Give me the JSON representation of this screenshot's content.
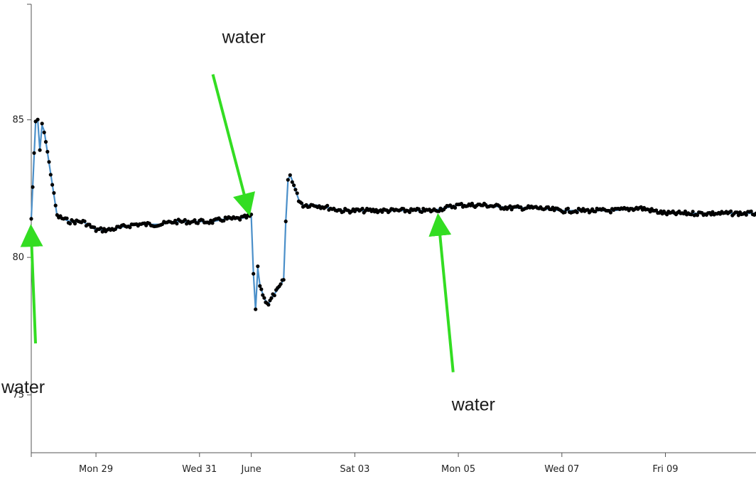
{
  "chart_data": {
    "type": "line",
    "title": "",
    "xlabel": "",
    "ylabel": "",
    "x_axis": {
      "type": "time",
      "range": [
        "2023-05-27T18:00",
        "2023-06-10T18:00"
      ],
      "ticks": [
        {
          "date": "2023-05-29",
          "label": "Mon 29"
        },
        {
          "date": "2023-05-31",
          "label": "Wed 31"
        },
        {
          "date": "2023-06-01",
          "label": "June"
        },
        {
          "date": "2023-06-03",
          "label": "Sat 03"
        },
        {
          "date": "2023-06-05",
          "label": "Mon 05"
        },
        {
          "date": "2023-06-07",
          "label": "Wed 07"
        },
        {
          "date": "2023-06-09",
          "label": "Fri 09"
        }
      ]
    },
    "y_axis": {
      "range": [
        72.9,
        89.2
      ],
      "ticks": [
        75,
        80,
        85
      ]
    },
    "grid": false,
    "legend": "none",
    "colors": {
      "line": "#4a8fc9",
      "points": "#000000",
      "arrows": "#33dd22",
      "axis": "#555555"
    },
    "series": [
      {
        "points": [
          [
            "2023-05-27T18:00",
            81.4
          ],
          [
            "2023-05-27T20:00",
            84.9
          ],
          [
            "2023-05-27T21:00",
            85.0
          ],
          [
            "2023-05-27T22:00",
            83.9
          ],
          [
            "2023-05-27T23:00",
            84.8
          ],
          [
            "2023-05-28T00:00",
            84.6
          ],
          [
            "2023-05-28T06:00",
            81.5
          ],
          [
            "2023-05-28T12:00",
            81.3
          ],
          [
            "2023-05-28T18:00",
            81.3
          ],
          [
            "2023-05-29T00:00",
            81.0
          ],
          [
            "2023-05-29T06:00",
            81.0
          ],
          [
            "2023-05-29T12:00",
            81.1
          ],
          [
            "2023-05-29T18:00",
            81.2
          ],
          [
            "2023-05-30T00:00",
            81.2
          ],
          [
            "2023-05-30T06:00",
            81.2
          ],
          [
            "2023-05-30T12:00",
            81.3
          ],
          [
            "2023-05-30T18:00",
            81.3
          ],
          [
            "2023-05-31T00:00",
            81.3
          ],
          [
            "2023-05-31T06:00",
            81.3
          ],
          [
            "2023-05-31T12:00",
            81.4
          ],
          [
            "2023-05-31T18:00",
            81.4
          ],
          [
            "2023-06-01T00:00",
            81.5
          ],
          [
            "2023-06-01T01:00",
            79.4
          ],
          [
            "2023-06-01T02:00",
            78.1
          ],
          [
            "2023-06-01T03:00",
            79.6
          ],
          [
            "2023-06-01T04:00",
            79.0
          ],
          [
            "2023-06-01T06:00",
            78.5
          ],
          [
            "2023-06-01T08:00",
            78.3
          ],
          [
            "2023-06-01T10:00",
            78.6
          ],
          [
            "2023-06-01T13:00",
            78.9
          ],
          [
            "2023-06-01T15:00",
            79.2
          ],
          [
            "2023-06-01T16:00",
            81.3
          ],
          [
            "2023-06-01T17:00",
            82.8
          ],
          [
            "2023-06-01T18:00",
            83.0
          ],
          [
            "2023-06-01T19:00",
            82.8
          ],
          [
            "2023-06-01T22:00",
            82.1
          ],
          [
            "2023-06-02T00:00",
            81.9
          ],
          [
            "2023-06-02T06:00",
            81.9
          ],
          [
            "2023-06-02T12:00",
            81.8
          ],
          [
            "2023-06-02T18:00",
            81.7
          ],
          [
            "2023-06-03T00:00",
            81.7
          ],
          [
            "2023-06-03T12:00",
            81.7
          ],
          [
            "2023-06-04T00:00",
            81.7
          ],
          [
            "2023-06-04T12:00",
            81.7
          ],
          [
            "2023-06-04T18:00",
            81.8
          ],
          [
            "2023-06-05T00:00",
            81.9
          ],
          [
            "2023-06-05T12:00",
            81.9
          ],
          [
            "2023-06-06T00:00",
            81.8
          ],
          [
            "2023-06-06T12:00",
            81.8
          ],
          [
            "2023-06-07T00:00",
            81.7
          ],
          [
            "2023-06-07T12:00",
            81.7
          ],
          [
            "2023-06-08T00:00",
            81.7
          ],
          [
            "2023-06-08T12:00",
            81.8
          ],
          [
            "2023-06-09T00:00",
            81.6
          ],
          [
            "2023-06-09T12:00",
            81.6
          ],
          [
            "2023-06-10T00:00",
            81.6
          ],
          [
            "2023-06-10T12:00",
            81.6
          ],
          [
            "2023-06-10T18:00",
            81.6
          ]
        ]
      }
    ],
    "annotations": [
      {
        "text": "water",
        "label_position": "lower-left",
        "points_to": [
          "2023-05-27T18:00",
          80.8
        ]
      },
      {
        "text": "water",
        "label_position": "top",
        "points_to": [
          "2023-05-31T22:00",
          81.9
        ]
      },
      {
        "text": "water",
        "label_position": "bottom",
        "points_to": [
          "2023-06-04T15:00",
          81.2
        ]
      }
    ]
  }
}
